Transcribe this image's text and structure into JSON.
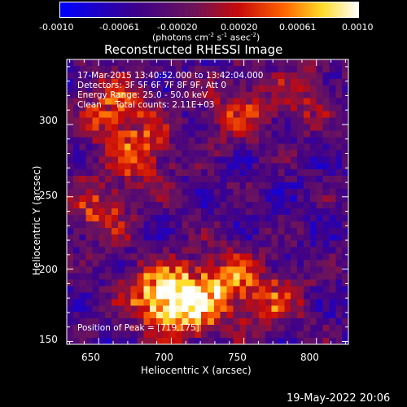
{
  "colorbar": {
    "ticks": [
      "-0.0010",
      "-0.00061",
      "-0.00020",
      "0.00020",
      "0.00061",
      "0.0010"
    ],
    "unit_label": "(photons cm",
    "unit_exp1": "-2",
    "unit_mid": " s",
    "unit_exp2": "-1",
    "unit_tail": " asec",
    "unit_exp3": "-2",
    "unit_close": ")"
  },
  "title": "Reconstructed RHESSI Image",
  "info": {
    "line1": "17-Mar-2015 13:40:52.000 to 13:42:04.000",
    "line2": "Detectors: 3F 5F 6F 7F 8F 9F, Att 0",
    "line3": "Energy Range: 25.0 - 50.0 keV",
    "line4": "Clean     Total counts: 2.11E+03",
    "peak": "Position of Peak = [719,175]"
  },
  "axes": {
    "xlabel": "Heliocentric X (arcsec)",
    "ylabel": "Heliocentric Y (arcsec)",
    "xticks": [
      "650",
      "700",
      "750",
      "800"
    ],
    "yticks": [
      "150",
      "200",
      "250",
      "300"
    ]
  },
  "timestamp": "19-May-2022 20:06",
  "chart_data": {
    "type": "heatmap",
    "title": "Reconstructed RHESSI Image",
    "xlabel": "Heliocentric X (arcsec)",
    "ylabel": "Heliocentric Y (arcsec)",
    "xlim": [
      628,
      822
    ],
    "ylim": [
      148,
      345
    ],
    "color_range": [
      -0.001,
      0.001
    ],
    "peak": [
      719,
      175
    ],
    "bright_sources": [
      {
        "x": 712,
        "y": 175,
        "intensity": 0.001
      },
      {
        "x": 690,
        "y": 182,
        "intensity": 0.0008
      },
      {
        "x": 740,
        "y": 192,
        "intensity": 0.0006
      },
      {
        "x": 770,
        "y": 178,
        "intensity": 0.0005
      },
      {
        "x": 660,
        "y": 310,
        "intensity": 0.0007
      },
      {
        "x": 680,
        "y": 280,
        "intensity": 0.0006
      },
      {
        "x": 650,
        "y": 240,
        "intensity": 0.0005
      },
      {
        "x": 745,
        "y": 310,
        "intensity": 0.0005
      },
      {
        "x": 790,
        "y": 320,
        "intensity": 0.0004
      }
    ]
  }
}
